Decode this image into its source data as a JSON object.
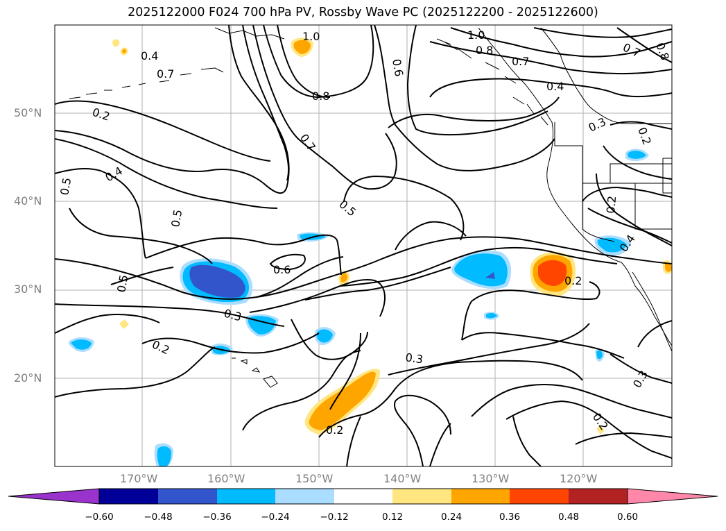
{
  "title": "2025122000 F024 700 hPa PV, Rossby Wave PC (2025122200 - 2025122600)",
  "axes": {
    "lat_ticks": [
      "50°N",
      "40°N",
      "30°N",
      "20°N"
    ],
    "lon_ticks": [
      "170°W",
      "160°W",
      "150°W",
      "140°W",
      "130°W",
      "120°W"
    ]
  },
  "colorbar": {
    "levels": [
      "−0.60",
      "−0.48",
      "−0.36",
      "−0.24",
      "−0.12",
      "0.12",
      "0.24",
      "0.36",
      "0.48",
      "0.60"
    ],
    "colors": [
      "#9933cc",
      "#000099",
      "#3355cc",
      "#00bbff",
      "#aaddff",
      "#ffffff",
      "#ffe680",
      "#ffa500",
      "#ff4500",
      "#b22222",
      "#ff88aa"
    ]
  },
  "contour_labels": [
    "0.4",
    "0.7",
    "0.2",
    "0.4",
    "0.5",
    "0.5",
    "0.5",
    "0.3",
    "0.2",
    "0.6",
    "0.5",
    "0.7",
    "0.8",
    "1.0",
    "0.6",
    "1.0",
    "0.8",
    "0.7",
    "0.4",
    "0.7",
    "0.8",
    "0.3",
    "0.2",
    "0.2",
    "0.4",
    "0.2",
    "0.3",
    "0.2",
    "0.2",
    "0.3",
    "0.5"
  ]
}
